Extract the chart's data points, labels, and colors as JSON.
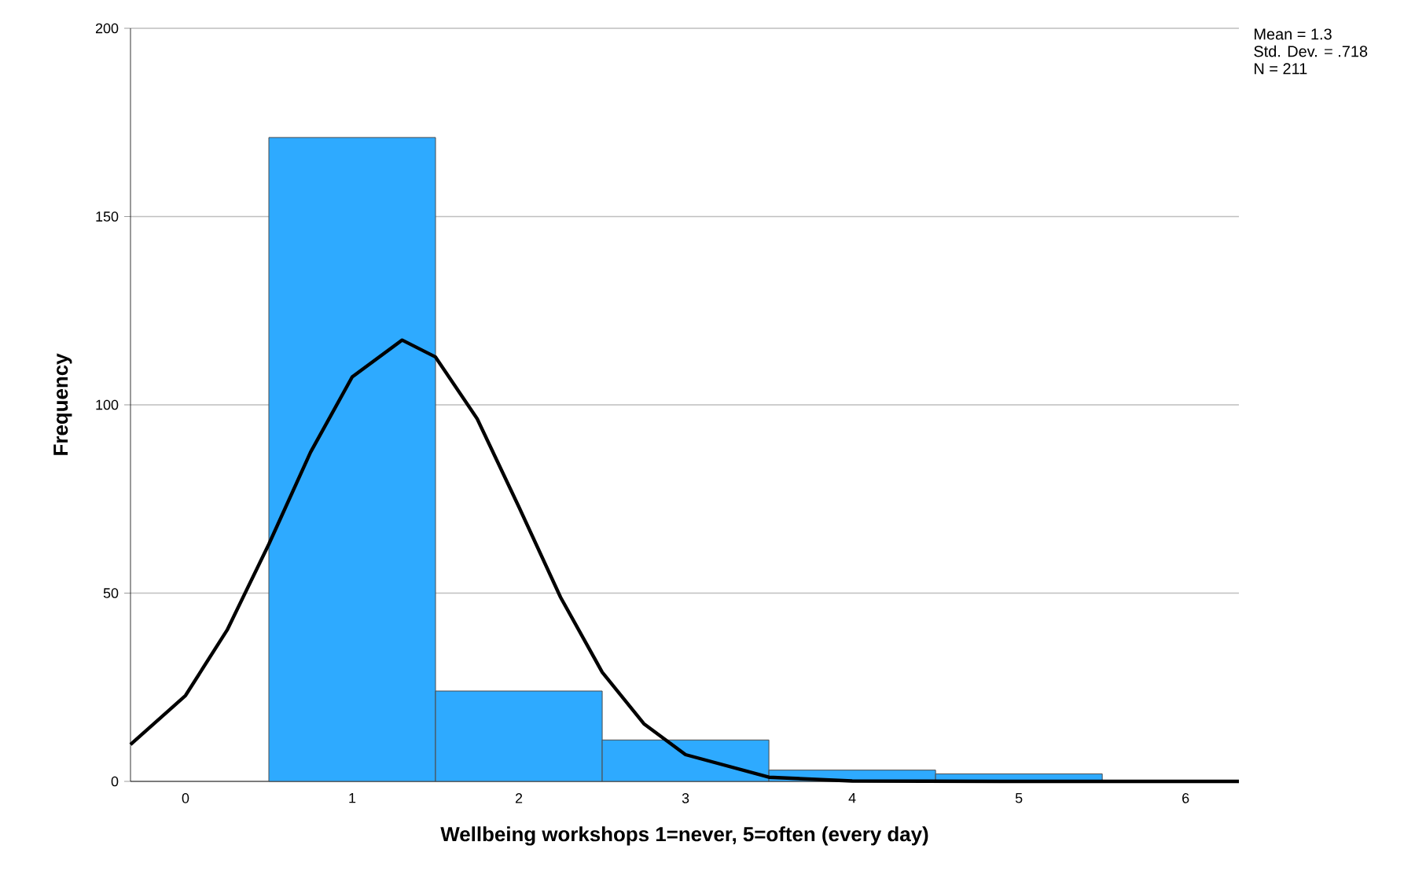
{
  "chart_data": {
    "type": "histogram",
    "xlabel": "Wellbeing workshops 1=never, 5=often (every day)",
    "ylabel": "Frequency",
    "bins": [
      0.5,
      1.5,
      2.5,
      3.5,
      4.5,
      5.5
    ],
    "values": [
      171,
      24,
      11,
      3,
      2
    ],
    "color": "#2eaaff",
    "series": [
      {
        "type": "line",
        "color": "#000000",
        "x": [
          -0.33,
          0,
          0.25,
          0.5,
          0.75,
          1.0,
          1.3,
          1.5,
          1.75,
          2.0,
          2.25,
          2.5,
          2.75,
          3.0,
          3.5,
          4.0,
          5.0,
          6.32
        ],
        "values": [
          9.8,
          22.8,
          40.2,
          63.0,
          87.4,
          107.4,
          117.2,
          112.7,
          96.3,
          72.9,
          48.9,
          29.0,
          15.3,
          7.1,
          1.1,
          0.1,
          0,
          0
        ]
      }
    ],
    "xlim": [
      -0.33,
      6.32
    ],
    "ylim": [
      0,
      200
    ],
    "xticks": [
      0,
      1,
      2,
      3,
      4,
      5,
      6
    ],
    "yticks": [
      0,
      50,
      100,
      150,
      200
    ],
    "grid": "y",
    "annotations": [
      "Mean = 1.3",
      "Std. Dev. = .718",
      "N = 211"
    ]
  }
}
